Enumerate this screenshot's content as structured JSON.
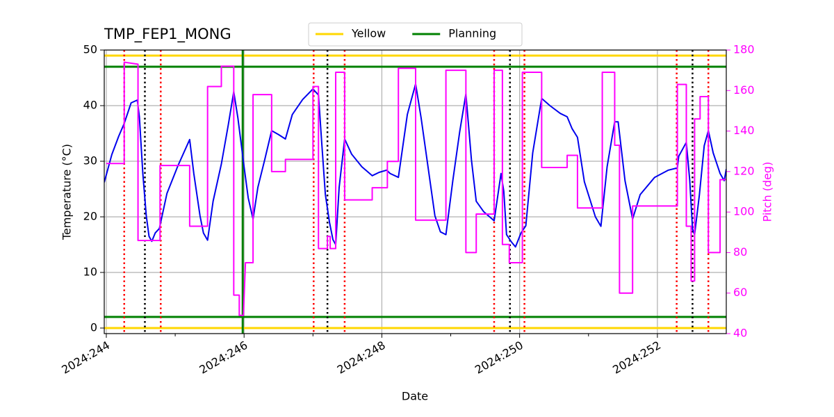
{
  "chart_data": {
    "type": "line",
    "title": "TMP_FEP1_MONG",
    "xlabel": "Date",
    "ylabel": "Temperature (°C)",
    "y2label": "Pitch (deg)",
    "xlim": [
      243.97,
      253.0
    ],
    "xticks": [
      {
        "value": 244,
        "label": "2024:244"
      },
      {
        "value": 246,
        "label": "2024:246"
      },
      {
        "value": 248,
        "label": "2024:248"
      },
      {
        "value": 250,
        "label": "2024:250"
      },
      {
        "value": 252,
        "label": "2024:252"
      }
    ],
    "xminorticks": [
      245,
      247,
      249,
      251
    ],
    "ylim": [
      -1,
      50
    ],
    "yticks": [
      0,
      10,
      20,
      30,
      40,
      50
    ],
    "y2lim": [
      40,
      180
    ],
    "y2ticks": [
      40,
      60,
      80,
      100,
      120,
      140,
      160,
      180
    ],
    "y2color": "magenta",
    "grid": true,
    "legend": "upper center",
    "hlines": [
      {
        "name": "Yellow",
        "color": "gold",
        "values": [
          0,
          49
        ]
      },
      {
        "name": "Planning",
        "color": "green",
        "values": [
          2,
          47
        ]
      }
    ],
    "vlines": [
      {
        "color": "red",
        "dash": "dotted",
        "x": [
          244.26,
          244.79,
          247.01,
          247.46,
          249.63,
          250.07,
          252.28,
          252.74
        ]
      },
      {
        "color": "black",
        "dash": "dotted",
        "x": [
          244.56,
          247.21,
          249.86,
          252.51
        ]
      },
      {
        "color": "green",
        "dash": "solid",
        "x": [
          245.98
        ]
      }
    ],
    "series": [
      {
        "color": "#0000ee",
        "x": [
          243.97,
          244.08,
          244.18,
          244.26,
          244.36,
          244.45,
          244.48,
          244.53,
          244.58,
          244.62,
          244.66,
          244.71,
          244.77,
          244.88,
          245.04,
          245.21,
          245.27,
          245.36,
          245.41,
          245.47,
          245.55,
          245.67,
          245.77,
          245.85,
          245.91,
          246.0,
          246.06,
          246.13,
          246.2,
          246.3,
          246.4,
          246.5,
          246.6,
          246.7,
          246.85,
          247.0,
          247.08,
          247.13,
          247.18,
          247.24,
          247.29,
          247.33,
          247.38,
          247.46,
          247.56,
          247.71,
          247.86,
          247.96,
          248.07,
          248.12,
          248.24,
          248.37,
          248.49,
          248.57,
          248.67,
          248.77,
          248.85,
          248.93,
          249.03,
          249.13,
          249.22,
          249.3,
          249.37,
          249.48,
          249.63,
          249.73,
          249.77,
          249.81,
          249.88,
          249.94,
          250.02,
          250.09,
          250.19,
          250.32,
          250.44,
          250.59,
          250.69,
          250.76,
          250.84,
          250.94,
          251.1,
          251.18,
          251.27,
          251.38,
          251.43,
          251.53,
          251.64,
          251.75,
          251.96,
          252.16,
          252.29,
          252.31,
          252.42,
          252.47,
          252.51,
          252.54,
          252.61,
          252.68,
          252.74,
          252.81,
          252.91,
          252.97,
          253.0
        ],
        "values": [
          26.2,
          31.2,
          34.5,
          36.8,
          40.5,
          41,
          38,
          27.8,
          20.2,
          16.5,
          15.6,
          17.1,
          17.9,
          24.2,
          29.2,
          33.9,
          27.8,
          20.2,
          17.1,
          15.8,
          22.8,
          29.5,
          36.5,
          42.5,
          37.8,
          29,
          23.4,
          19.6,
          25.3,
          30.3,
          35.5,
          34.8,
          34,
          38.4,
          41.1,
          43,
          41.9,
          32.8,
          24,
          19,
          15.9,
          15,
          25.3,
          34,
          31.3,
          29,
          27.4,
          28,
          28.4,
          27.8,
          27.1,
          38.4,
          43.9,
          37.8,
          29,
          20.2,
          17.3,
          16.8,
          26.5,
          35.3,
          42.1,
          30.3,
          22.8,
          20.9,
          19.3,
          27.8,
          24.6,
          16.8,
          15.5,
          14.6,
          17.1,
          18.4,
          31.5,
          41.3,
          40,
          38.6,
          38,
          35.9,
          34.3,
          26.3,
          20,
          18.3,
          29,
          37.1,
          37.1,
          26.5,
          19.6,
          24,
          27.1,
          28.4,
          28.8,
          30.9,
          33.4,
          26.5,
          17.8,
          16.8,
          24,
          32.8,
          35.5,
          31.5,
          27.8,
          26.5,
          28.6
        ]
      },
      {
        "color": "magenta",
        "axis": "y2",
        "x": [
          244.0,
          244.26,
          244.26,
          244.46,
          244.46,
          244.78,
          244.78,
          245.21,
          245.21,
          245.47,
          245.47,
          245.67,
          245.67,
          245.85,
          245.85,
          245.93,
          245.93,
          245.99,
          246.02,
          246.13,
          246.13,
          246.4,
          246.4,
          246.6,
          246.6,
          247.0,
          247.0,
          247.08,
          247.08,
          247.21,
          247.21,
          247.25,
          247.25,
          247.33,
          247.33,
          247.46,
          247.46,
          247.86,
          247.86,
          248.08,
          248.08,
          248.24,
          248.24,
          248.49,
          248.49,
          248.93,
          248.93,
          249.22,
          249.22,
          249.37,
          249.37,
          249.63,
          249.63,
          249.75,
          249.75,
          249.85,
          249.85,
          250.04,
          250.04,
          250.32,
          250.32,
          250.69,
          250.69,
          250.84,
          250.84,
          251.2,
          251.2,
          251.38,
          251.38,
          251.45,
          251.45,
          251.64,
          251.64,
          252.29,
          252.29,
          252.42,
          252.42,
          252.49,
          252.49,
          252.54,
          252.54,
          252.62,
          252.62,
          252.74,
          252.74,
          252.91,
          252.91,
          253.0
        ],
        "values": [
          124,
          124,
          174,
          173,
          86,
          86,
          123,
          123,
          93,
          93,
          162,
          162,
          172,
          172,
          59,
          59,
          49,
          49,
          75,
          75,
          158,
          158,
          120,
          120,
          126,
          126,
          162,
          162,
          82,
          82,
          88,
          88,
          82,
          82,
          169,
          169,
          106,
          106,
          112,
          112,
          125,
          125,
          171,
          171,
          96,
          96,
          170,
          170,
          80,
          80,
          99,
          99,
          170,
          170,
          84,
          84,
          75,
          75,
          169,
          169,
          122,
          122,
          128,
          128,
          102,
          102,
          169,
          169,
          133,
          133,
          60,
          60,
          103,
          103,
          163,
          163,
          93,
          93,
          66,
          66,
          146,
          146,
          157,
          157,
          80,
          80,
          116,
          116
        ]
      }
    ]
  }
}
